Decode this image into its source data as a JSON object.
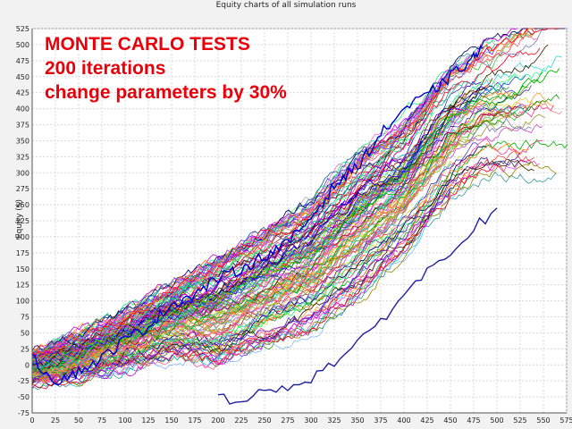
{
  "chart_data": {
    "type": "line",
    "title": "Equity charts of all simulation runs",
    "xlabel": "",
    "ylabel": "Equity ($)",
    "xlim": [
      0,
      575
    ],
    "ylim": [
      -75,
      525
    ],
    "x_ticks": [
      0,
      25,
      50,
      75,
      100,
      125,
      150,
      175,
      200,
      225,
      250,
      275,
      300,
      325,
      350,
      375,
      400,
      425,
      450,
      475,
      500,
      525,
      550,
      575
    ],
    "y_ticks": [
      -75,
      -50,
      -25,
      0,
      25,
      50,
      75,
      100,
      125,
      150,
      175,
      200,
      225,
      250,
      275,
      300,
      325,
      350,
      375,
      400,
      425,
      450,
      475,
      500,
      525
    ],
    "grid": true,
    "legend": "none",
    "annotation_lines": [
      "MONTE CARLO TESTS",
      "200 iterations",
      "change parameters by 30%"
    ],
    "annotation_color": "#e8000a",
    "series_count": 200,
    "envelope": {
      "x": [
        0,
        50,
        100,
        150,
        200,
        250,
        300,
        350,
        400,
        450,
        490
      ],
      "upper": [
        20,
        45,
        85,
        125,
        170,
        215,
        260,
        335,
        385,
        470,
        510
      ],
      "lower": [
        -50,
        -45,
        -40,
        -30,
        -65,
        -40,
        -20,
        20,
        90,
        180,
        220
      ]
    },
    "highlight_series": [
      {
        "name": "",
        "color": "#0000c8",
        "x": [
          0,
          25,
          50,
          75,
          100,
          125,
          150,
          175,
          200,
          225,
          250,
          275,
          300,
          325,
          350,
          375,
          400,
          425,
          450,
          475,
          485
        ],
        "y": [
          10,
          -25,
          -10,
          10,
          40,
          60,
          95,
          110,
          135,
          150,
          170,
          190,
          230,
          280,
          310,
          360,
          400,
          420,
          450,
          480,
          495
        ]
      },
      {
        "name": "",
        "color": "#2020a0",
        "x": [
          200,
          250,
          300,
          350,
          400,
          450,
          500
        ],
        "y": [
          -55,
          -45,
          -20,
          30,
          110,
          180,
          245
        ]
      }
    ]
  }
}
